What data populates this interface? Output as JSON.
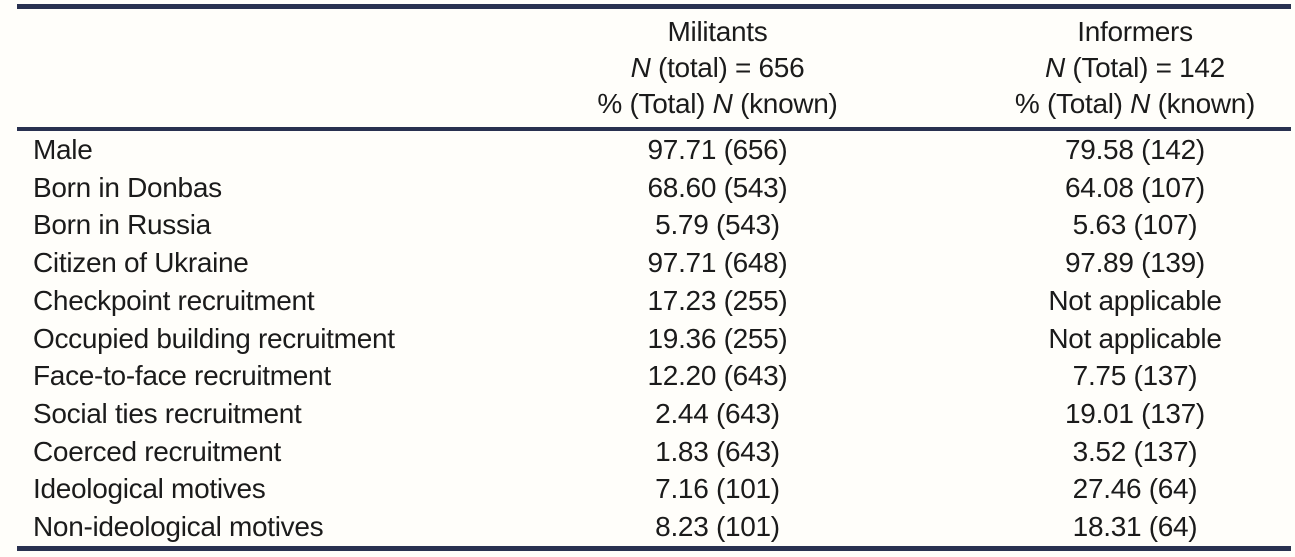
{
  "colors": {
    "rule": "#293150",
    "text": "#1b1b1b",
    "background": "#fffefa"
  },
  "table": {
    "header": {
      "militants": {
        "title": "Militants",
        "n_line": {
          "italic_n": "N",
          "rest": " (total) = 656"
        },
        "pct_line": {
          "pre": "% (Total) ",
          "italic_n": "N",
          "rest": " (known)"
        }
      },
      "informers": {
        "title": "Informers",
        "n_line": {
          "italic_n": "N",
          "rest": " (Total) = 142"
        },
        "pct_line": {
          "pre": "% (Total) ",
          "italic_n": "N",
          "rest": " (known)"
        }
      }
    },
    "rows": [
      {
        "label": "Male",
        "militants": "97.71 (656)",
        "informers": "79.58 (142)"
      },
      {
        "label": "Born in Donbas",
        "militants": "68.60 (543)",
        "informers": "64.08 (107)"
      },
      {
        "label": "Born in Russia",
        "militants": "5.79 (543)",
        "informers": "5.63 (107)"
      },
      {
        "label": "Citizen of Ukraine",
        "militants": "97.71 (648)",
        "informers": "97.89 (139)"
      },
      {
        "label": "Checkpoint recruitment",
        "militants": "17.23 (255)",
        "informers": "Not applicable"
      },
      {
        "label": "Occupied building recruitment",
        "militants": "19.36 (255)",
        "informers": "Not applicable"
      },
      {
        "label": "Face-to-face recruitment",
        "militants": "12.20 (643)",
        "informers": "7.75 (137)"
      },
      {
        "label": "Social ties recruitment",
        "militants": "2.44 (643)",
        "informers": "19.01 (137)"
      },
      {
        "label": "Coerced recruitment",
        "militants": "1.83 (643)",
        "informers": "3.52 (137)"
      },
      {
        "label": "Ideological motives",
        "militants": "7.16 (101)",
        "informers": "27.46 (64)"
      },
      {
        "label": "Non-ideological motives",
        "militants": "8.23 (101)",
        "informers": "18.31 (64)"
      }
    ]
  }
}
